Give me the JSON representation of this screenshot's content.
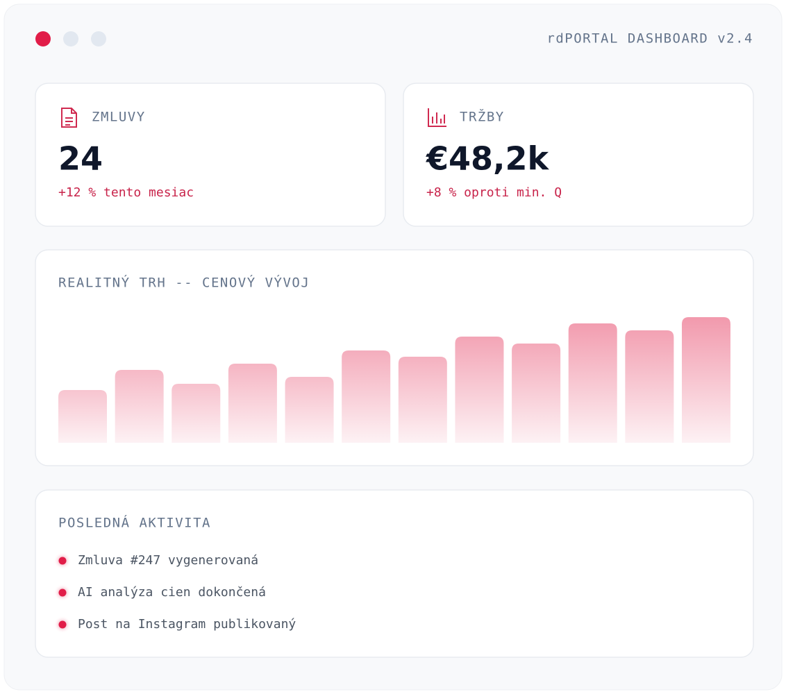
{
  "header": {
    "title": "rdPORTAL DASHBOARD v2.4"
  },
  "cards": [
    {
      "label": "ZMLUVY",
      "value": "24",
      "change": "+12 % tento mesiac"
    },
    {
      "label": "TRŽBY",
      "value": "€48,2k",
      "change": "+8 % oproti min. Q"
    }
  ],
  "chart_data": {
    "type": "bar",
    "title": "REALITNÝ TRH -- CENOVÝ VÝVOJ",
    "values": [
      76,
      105,
      85,
      114,
      95,
      133,
      124,
      153,
      143,
      172,
      162,
      181
    ],
    "color": "#e11d48"
  },
  "activity": {
    "title": "POSLEDNÁ AKTIVITA",
    "items": [
      "Zmluva #247 vygenerovaná",
      "AI analýza cien dokončená",
      "Post na Instagram publikovaný"
    ]
  }
}
